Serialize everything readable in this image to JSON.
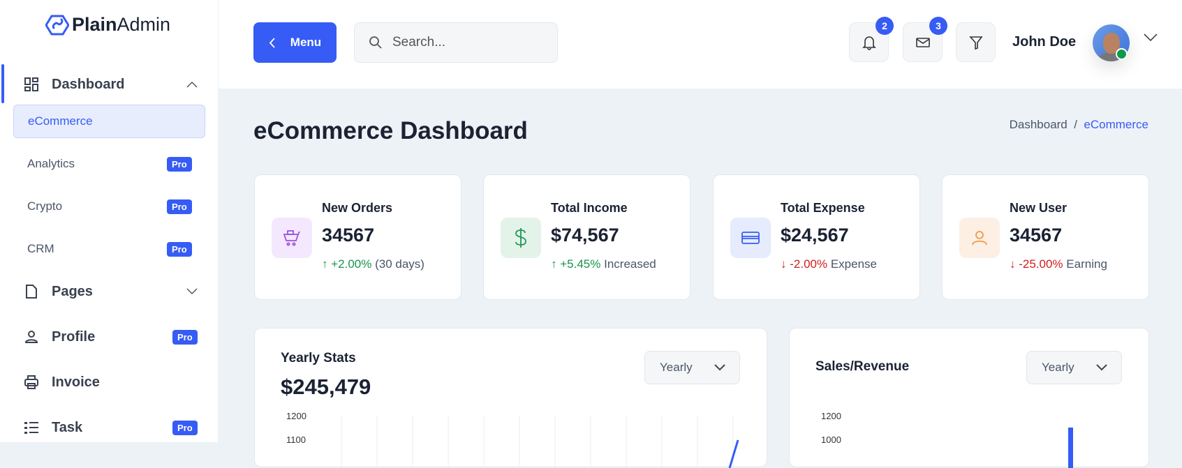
{
  "brand": {
    "name_bold": "Plain",
    "name_light": "Admin"
  },
  "sidebar": {
    "dashboard": "Dashboard",
    "sub_items": [
      {
        "label": "eCommerce",
        "active": true
      },
      {
        "label": "Analytics",
        "badge": "Pro"
      },
      {
        "label": "Crypto",
        "badge": "Pro"
      },
      {
        "label": "CRM",
        "badge": "Pro"
      }
    ],
    "items": [
      {
        "label": "Pages"
      },
      {
        "label": "Profile",
        "badge": "Pro"
      },
      {
        "label": "Invoice"
      },
      {
        "label": "Task",
        "badge": "Pro"
      }
    ]
  },
  "header": {
    "menu_label": "Menu",
    "search_placeholder": "Search...",
    "notifications_count": "2",
    "messages_count": "3",
    "user_name": "John Doe",
    "online_status_color": "#0c9a4a"
  },
  "page": {
    "title": "eCommerce Dashboard",
    "breadcrumb": [
      "Dashboard",
      "eCommerce"
    ],
    "breadcrumb_sep": "/"
  },
  "stats": [
    {
      "label": "New Orders",
      "value": "34567",
      "change": "+2.00%",
      "note": "(30 days)",
      "trend": "up",
      "icon": "cart-icon",
      "color": "#9b51e0"
    },
    {
      "label": "Total Income",
      "value": "$74,567",
      "change": "+5.45%",
      "note": "Increased",
      "trend": "up",
      "icon": "dollar-icon",
      "color": "#219653"
    },
    {
      "label": "Total Expense",
      "value": "$24,567",
      "change": "-2.00%",
      "note": "Expense",
      "trend": "down",
      "icon": "credit-card-icon",
      "color": "#365cf5"
    },
    {
      "label": "New User",
      "value": "34567",
      "change": "-25.00%",
      "note": "Earning",
      "trend": "down",
      "icon": "user-icon",
      "color": "#f2994a"
    }
  ],
  "yearly": {
    "title": "Yearly Stats",
    "total": "$245,479",
    "select": "Yearly"
  },
  "sales": {
    "title": "Sales/Revenue",
    "select": "Yearly"
  },
  "chart_data": [
    {
      "type": "line",
      "title": "Yearly Stats",
      "y_ticks": [
        "1200",
        "1100"
      ],
      "grid": "vertical",
      "color": "#365cf5"
    },
    {
      "type": "bar",
      "title": "Sales/Revenue",
      "y_ticks": [
        "1200",
        "1000"
      ],
      "color": "#365cf5"
    }
  ]
}
